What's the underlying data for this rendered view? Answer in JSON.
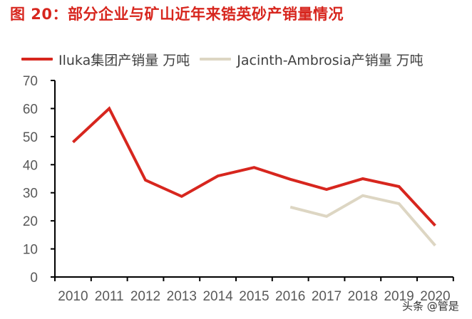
{
  "header": {
    "title": "图 20：部分企业与矿山近年来锆英砂产销量情况"
  },
  "legend": {
    "items": [
      {
        "label": "Iluka集团产销量 万吨",
        "color": "#d7261e"
      },
      {
        "label": "Jacinth-Ambrosia产销量 万吨",
        "color": "#ddd6c3"
      }
    ]
  },
  "watermark": "头条 @管是",
  "chart_data": {
    "type": "line",
    "title": "图 20：部分企业与矿山近年来锆英砂产销量情况",
    "xlabel": "",
    "ylabel": "",
    "categories": [
      "2010",
      "2011",
      "2012",
      "2013",
      "2014",
      "2015",
      "2016",
      "2017",
      "2018",
      "2019",
      "2020"
    ],
    "series": [
      {
        "name": "Iluka集团产销量 万吨",
        "color": "#d7261e",
        "values": [
          48,
          60,
          34.5,
          28.7,
          36,
          39,
          34.8,
          31.2,
          35,
          32.2,
          18.3
        ]
      },
      {
        "name": "Jacinth-Ambrosia产销量 万吨",
        "color": "#ddd6c3",
        "values": [
          null,
          null,
          null,
          null,
          null,
          null,
          24.9,
          21.6,
          29,
          26.1,
          11.2
        ]
      }
    ],
    "ylim": [
      0,
      70
    ],
    "yticks": [
      0,
      10,
      20,
      30,
      40,
      50,
      60,
      70
    ],
    "grid": false,
    "legend_position": "top"
  }
}
